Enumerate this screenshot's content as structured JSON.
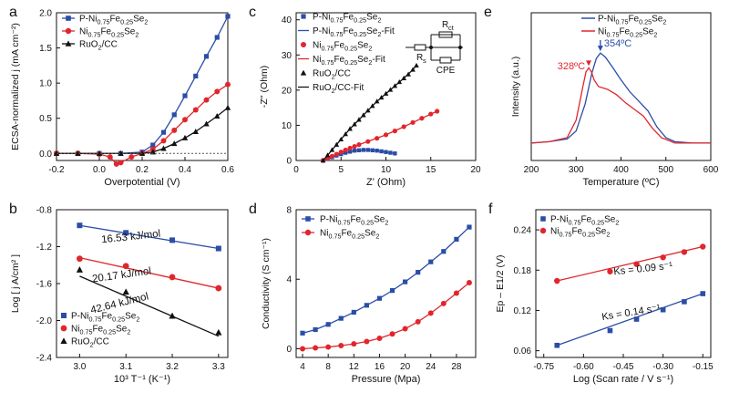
{
  "colors": {
    "blue": "#2a4da8",
    "red": "#e0262c",
    "black": "#111111"
  },
  "chart_data": [
    {
      "id": "a",
      "panel_label": "a",
      "type": "line",
      "xlabel": "Overpotential (V)",
      "ylabel": "ECSA-normalized j (mA cm⁻²)",
      "xlim": [
        -0.2,
        0.6
      ],
      "ylim": [
        -0.1,
        2.0
      ],
      "xticks": [
        "-0.2",
        "0.0",
        "0.2",
        "0.4",
        "0.6"
      ],
      "yticks": [
        "0.0",
        "0.5",
        "1.0",
        "1.5",
        "2.0"
      ],
      "legend_position": "top-left",
      "series": [
        {
          "name": "P-Ni0.75Fe0.25Se2",
          "color": "blue",
          "marker": "square",
          "x": [
            -0.2,
            -0.1,
            0.0,
            0.1,
            0.2,
            0.25,
            0.3,
            0.35,
            0.4,
            0.45,
            0.5,
            0.55,
            0.6
          ],
          "y": [
            0.0,
            0.0,
            0.0,
            0.0,
            0.02,
            0.12,
            0.3,
            0.55,
            0.82,
            1.1,
            1.38,
            1.65,
            1.95
          ]
        },
        {
          "name": "Ni0.75Fe0.25Se2",
          "color": "red",
          "marker": "circle",
          "x": [
            -0.2,
            -0.1,
            0.0,
            0.05,
            0.08,
            0.1,
            0.15,
            0.2,
            0.25,
            0.3,
            0.35,
            0.4,
            0.45,
            0.5,
            0.55,
            0.6
          ],
          "y": [
            0.0,
            0.0,
            -0.01,
            -0.05,
            -0.15,
            -0.13,
            -0.05,
            0.0,
            0.06,
            0.18,
            0.33,
            0.48,
            0.62,
            0.76,
            0.88,
            0.98
          ]
        },
        {
          "name": "RuO2/CC",
          "color": "black",
          "marker": "triangle",
          "x": [
            -0.2,
            -0.1,
            0.0,
            0.1,
            0.2,
            0.25,
            0.3,
            0.35,
            0.4,
            0.45,
            0.5,
            0.55,
            0.6
          ],
          "y": [
            0.0,
            0.0,
            0.0,
            0.0,
            0.0,
            0.02,
            0.07,
            0.14,
            0.22,
            0.31,
            0.42,
            0.53,
            0.65
          ]
        }
      ]
    },
    {
      "id": "b",
      "panel_label": "b",
      "type": "scatter",
      "xlabel": "10³ T⁻¹ (K⁻¹)",
      "ylabel": "Log [ j A/cm² ]",
      "xlim": [
        2.95,
        3.32
      ],
      "ylim": [
        -2.4,
        -0.8
      ],
      "xticks": [
        "3.0",
        "3.1",
        "3.2",
        "3.3"
      ],
      "yticks": [
        "-2.4",
        "-2.0",
        "-1.6",
        "-1.2",
        "-0.8"
      ],
      "legend_position": "bottom-left",
      "annotations": [
        "16.53 kJ/mol",
        "20.17 kJ/mol",
        "42.64 kJ/mol"
      ],
      "series": [
        {
          "name": "P-Ni0.75Fe0.25Se2",
          "color": "blue",
          "marker": "square",
          "x": [
            3.0,
            3.1,
            3.2,
            3.3
          ],
          "y": [
            -0.97,
            -1.05,
            -1.13,
            -1.22
          ],
          "fit": [
            [
              3.0,
              -0.97
            ],
            [
              3.3,
              -1.22
            ]
          ]
        },
        {
          "name": "Ni0.75Fe0.25Se2",
          "color": "red",
          "marker": "circle",
          "x": [
            3.0,
            3.1,
            3.2,
            3.3
          ],
          "y": [
            -1.33,
            -1.41,
            -1.53,
            -1.65
          ],
          "fit": [
            [
              3.0,
              -1.32
            ],
            [
              3.3,
              -1.65
            ]
          ]
        },
        {
          "name": "RuO2/CC",
          "color": "black",
          "marker": "triangle",
          "x": [
            3.0,
            3.1,
            3.2,
            3.3
          ],
          "y": [
            -1.45,
            -1.69,
            -1.95,
            -2.13
          ],
          "fit": [
            [
              3.0,
              -1.52
            ],
            [
              3.3,
              -2.17
            ]
          ]
        }
      ]
    },
    {
      "id": "c",
      "panel_label": "c",
      "type": "scatter",
      "xlabel": "Z' (Ohm)",
      "ylabel": "-Z'' (Ohm)",
      "xlim": [
        0,
        20
      ],
      "ylim": [
        0,
        42
      ],
      "xticks": [
        "0",
        "5",
        "10",
        "15",
        "20"
      ],
      "yticks": [
        "0",
        "10",
        "20",
        "30",
        "40"
      ],
      "legend_position": "top-left",
      "circuit_labels": {
        "rs": "R",
        "rs_sub": "s",
        "rct": "R",
        "rct_sub": "ct",
        "cpe": "CPE"
      },
      "series": [
        {
          "name": "P-Ni0.75Fe0.25Se2",
          "color": "blue",
          "marker": "square",
          "x": [
            3.0,
            3.5,
            4.0,
            4.5,
            5.0,
            5.5,
            6.0,
            6.5,
            7.0,
            7.5,
            8.0,
            8.5,
            9.0,
            9.5,
            10.0,
            10.5,
            11.0
          ],
          "y": [
            0.0,
            0.4,
            0.9,
            1.4,
            1.8,
            2.2,
            2.5,
            2.8,
            2.9,
            3.0,
            3.0,
            2.9,
            2.8,
            2.6,
            2.4,
            2.2,
            2.0
          ]
        },
        {
          "name": "P-Ni0.75Fe0.25Se2-Fit",
          "color": "blue",
          "style": "line",
          "x": [
            3.0,
            4.0,
            5.0,
            6.0,
            7.0,
            8.0,
            9.0,
            10.0,
            11.0
          ],
          "y": [
            0.0,
            0.9,
            1.8,
            2.5,
            2.9,
            3.0,
            2.8,
            2.4,
            2.0
          ]
        },
        {
          "name": "Ni0.75Fe0.25Se2",
          "color": "red",
          "marker": "circle",
          "x": [
            3.0,
            3.5,
            4.0,
            4.5,
            5.0,
            5.5,
            6.0,
            6.5,
            7.0,
            8.0,
            9.0,
            10.0,
            11.0,
            12.0,
            13.0,
            14.0,
            15.0,
            15.7
          ],
          "y": [
            0.0,
            0.6,
            1.2,
            1.8,
            2.4,
            3.0,
            3.5,
            4.0,
            4.5,
            5.4,
            6.3,
            7.3,
            8.4,
            9.6,
            10.8,
            12.0,
            13.2,
            14.0
          ]
        },
        {
          "name": "Ni0.75Fe0.25Se2-Fit",
          "color": "red",
          "style": "line",
          "x": [
            3.0,
            4.0,
            5.0,
            6.0,
            7.0,
            8.0,
            10.0,
            12.0,
            14.0,
            15.7
          ],
          "y": [
            0.0,
            1.2,
            2.4,
            3.5,
            4.5,
            5.4,
            7.3,
            9.6,
            12.0,
            14.0
          ]
        },
        {
          "name": "RuO2/CC",
          "color": "black",
          "marker": "triangle",
          "x": [
            3.0,
            3.5,
            4.0,
            4.5,
            5.0,
            5.5,
            6.0,
            6.5,
            7.0,
            7.5,
            8.0,
            8.5,
            9.0,
            9.5,
            10.0,
            10.5,
            11.0,
            11.5,
            12.0,
            12.5,
            13.0,
            13.4
          ],
          "y": [
            0.0,
            1.5,
            3.0,
            4.5,
            6.0,
            7.5,
            9.0,
            10.3,
            11.6,
            12.9,
            14.2,
            15.5,
            16.8,
            17.9,
            19.0,
            20.1,
            21.2,
            22.3,
            23.4,
            24.5,
            25.8,
            27.0
          ]
        },
        {
          "name": "RuO2/CC-Fit",
          "color": "black",
          "style": "line",
          "x": [
            3.0,
            4.0,
            5.0,
            6.0,
            7.0,
            8.0,
            9.0,
            10.0,
            11.0,
            12.0,
            13.0,
            13.4
          ],
          "y": [
            0.0,
            3.0,
            6.0,
            9.0,
            11.6,
            14.2,
            16.8,
            19.0,
            21.2,
            23.4,
            25.8,
            27.0
          ]
        }
      ]
    },
    {
      "id": "d",
      "panel_label": "d",
      "type": "line",
      "xlabel": "Pressure (Mpa)",
      "ylabel": "Conductivity (S cm⁻¹)",
      "xlim": [
        3,
        31
      ],
      "ylim": [
        -0.5,
        8
      ],
      "xticks": [
        "4",
        "8",
        "12",
        "16",
        "20",
        "24",
        "28"
      ],
      "yticks": [
        "0",
        "4",
        "8"
      ],
      "legend_position": "top-left",
      "series": [
        {
          "name": "P-Ni0.75Fe0.25Se2",
          "color": "blue",
          "marker": "square",
          "x": [
            4,
            6,
            8,
            10,
            12,
            14,
            16,
            18,
            20,
            22,
            24,
            26,
            28,
            30
          ],
          "y": [
            0.9,
            1.1,
            1.4,
            1.75,
            2.1,
            2.5,
            2.9,
            3.35,
            3.85,
            4.4,
            5.0,
            5.6,
            6.3,
            7.0
          ]
        },
        {
          "name": "Ni0.75Fe0.25Se2",
          "color": "red",
          "marker": "circle",
          "x": [
            4,
            6,
            8,
            10,
            12,
            14,
            16,
            18,
            20,
            22,
            24,
            26,
            28,
            30
          ],
          "y": [
            0.0,
            0.05,
            0.1,
            0.18,
            0.28,
            0.42,
            0.6,
            0.85,
            1.15,
            1.55,
            2.05,
            2.6,
            3.2,
            3.8
          ]
        }
      ]
    },
    {
      "id": "e",
      "panel_label": "e",
      "type": "line",
      "xlabel": "Temperature (ºC)",
      "ylabel": "Intensity (a.u.)",
      "xlim": [
        200,
        600
      ],
      "ylim": [
        0,
        1.1
      ],
      "xticks": [
        "200",
        "300",
        "400",
        "500",
        "600"
      ],
      "legend_position": "top-right",
      "annotations": [
        {
          "text": "354ºC",
          "x": 354
        },
        {
          "text": "328ºC",
          "x": 328
        }
      ],
      "series": [
        {
          "name": "P-Ni0.75Fe0.25Se2",
          "color": "blue",
          "x": [
            200,
            240,
            280,
            300,
            320,
            335,
            345,
            354,
            365,
            380,
            400,
            420,
            440,
            460,
            480,
            500,
            520,
            560,
            600
          ],
          "y": [
            0.13,
            0.14,
            0.16,
            0.22,
            0.42,
            0.65,
            0.76,
            0.8,
            0.77,
            0.7,
            0.6,
            0.51,
            0.44,
            0.37,
            0.25,
            0.17,
            0.14,
            0.13,
            0.13
          ]
        },
        {
          "name": "Ni0.75Fe0.25Se2",
          "color": "red",
          "x": [
            200,
            240,
            280,
            300,
            315,
            322,
            328,
            334,
            340,
            350,
            370,
            390,
            410,
            430,
            450,
            470,
            490,
            520,
            560,
            600
          ],
          "y": [
            0.13,
            0.14,
            0.17,
            0.3,
            0.55,
            0.66,
            0.69,
            0.66,
            0.6,
            0.55,
            0.53,
            0.49,
            0.43,
            0.38,
            0.33,
            0.24,
            0.17,
            0.13,
            0.13,
            0.13
          ]
        }
      ]
    },
    {
      "id": "f",
      "panel_label": "f",
      "type": "scatter",
      "xlabel": "Log (Scan rate / V s⁻¹)",
      "ylabel": "Ep – E1/2 (V)",
      "xlim": [
        -0.78,
        -0.12
      ],
      "ylim": [
        0.05,
        0.27
      ],
      "xticks": [
        "-0.75",
        "-0.60",
        "-0.45",
        "-0.30",
        "-0.15"
      ],
      "yticks": [
        "0.06",
        "0.12",
        "0.18",
        "0.24"
      ],
      "legend_position": "top-left",
      "annotations": [
        "Ks = 0.09 s⁻¹",
        "Ks = 0.14 s⁻¹"
      ],
      "series": [
        {
          "name": "P-Ni0.75Fe0.25Se2",
          "color": "blue",
          "marker": "square",
          "x": [
            -0.7,
            -0.5,
            -0.4,
            -0.3,
            -0.22,
            -0.15
          ],
          "y": [
            0.068,
            0.09,
            0.107,
            0.121,
            0.133,
            0.145
          ]
        },
        {
          "name": "Ni0.75Fe0.25Se2",
          "color": "red",
          "marker": "circle",
          "x": [
            -0.7,
            -0.5,
            -0.4,
            -0.3,
            -0.22,
            -0.15
          ],
          "y": [
            0.164,
            0.178,
            0.189,
            0.199,
            0.207,
            0.215
          ]
        }
      ]
    }
  ]
}
